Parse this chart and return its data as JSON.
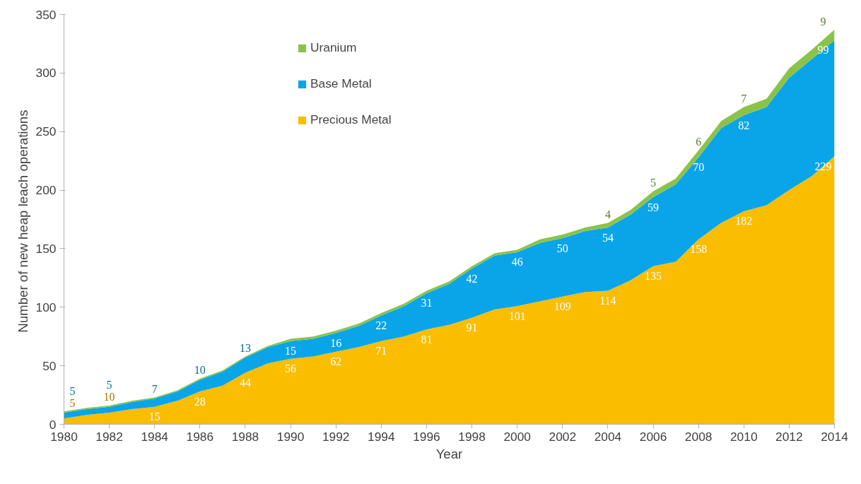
{
  "chart_data": {
    "type": "area",
    "stacked": true,
    "xlabel": "Year",
    "ylabel": "Number  of new heap leach operations",
    "x": [
      1980,
      1981,
      1982,
      1983,
      1984,
      1985,
      1986,
      1987,
      1988,
      1989,
      1990,
      1991,
      1992,
      1993,
      1994,
      1995,
      1996,
      1997,
      1998,
      1999,
      2000,
      2001,
      2002,
      2003,
      2004,
      2005,
      2006,
      2007,
      2008,
      2009,
      2010,
      2011,
      2012,
      2013,
      2014
    ],
    "series": [
      {
        "name": "Precious Metal",
        "color": "#fbbd00",
        "values": [
          5,
          8,
          10,
          13,
          15,
          20,
          28,
          33,
          44,
          52,
          56,
          58,
          62,
          66,
          71,
          75,
          81,
          85,
          91,
          98,
          101,
          105,
          109,
          113,
          114,
          123,
          135,
          139,
          158,
          172,
          182,
          187,
          200,
          212,
          229
        ],
        "value_labels": [
          "5",
          null,
          "10",
          null,
          "15",
          null,
          "28",
          null,
          "44",
          null,
          "56",
          null,
          "62",
          null,
          "71",
          null,
          "81",
          null,
          "91",
          null,
          "101",
          null,
          "109",
          null,
          "114",
          null,
          "135",
          null,
          "158",
          null,
          "182",
          null,
          null,
          null,
          "229"
        ]
      },
      {
        "name": "Base Metal",
        "color": "#0aa5e8",
        "values": [
          5,
          5,
          5,
          6,
          7,
          8,
          10,
          12,
          13,
          14,
          15,
          15,
          16,
          18,
          22,
          26,
          31,
          35,
          42,
          46,
          46,
          50,
          50,
          52,
          54,
          56,
          59,
          66,
          70,
          81,
          82,
          84,
          96,
          100,
          99
        ],
        "value_labels": [
          "5",
          null,
          "5",
          null,
          "7",
          null,
          "10",
          null,
          "13",
          null,
          "15",
          null,
          "16",
          null,
          "22",
          null,
          "31",
          null,
          "42",
          null,
          "46",
          null,
          "50",
          null,
          "54",
          null,
          "59",
          null,
          "70",
          null,
          "82",
          null,
          null,
          null,
          "99"
        ]
      },
      {
        "name": "Uranium",
        "color": "#8bc34a",
        "values": [
          1,
          1,
          1,
          1,
          1,
          1,
          1,
          1,
          1,
          1,
          2,
          2,
          2,
          2,
          2,
          2,
          2,
          2,
          2,
          2,
          2,
          3,
          3,
          3,
          4,
          4,
          5,
          5,
          6,
          6,
          7,
          7,
          8,
          8,
          9
        ],
        "value_labels": [
          null,
          null,
          null,
          null,
          null,
          null,
          null,
          null,
          null,
          null,
          null,
          null,
          null,
          null,
          null,
          null,
          null,
          null,
          null,
          null,
          null,
          null,
          null,
          null,
          "4",
          null,
          "5",
          null,
          "6",
          null,
          "7",
          null,
          null,
          null,
          "9"
        ]
      }
    ],
    "xlim": [
      1980,
      2014
    ],
    "xticks": [
      1980,
      1982,
      1984,
      1986,
      1988,
      1990,
      1992,
      1994,
      1996,
      1998,
      2000,
      2002,
      2004,
      2006,
      2008,
      2010,
      2012,
      2014
    ],
    "ylim": [
      0,
      350
    ],
    "yticks": [
      0,
      50,
      100,
      150,
      200,
      250,
      300,
      350
    ],
    "grid": false,
    "legend": "top"
  }
}
